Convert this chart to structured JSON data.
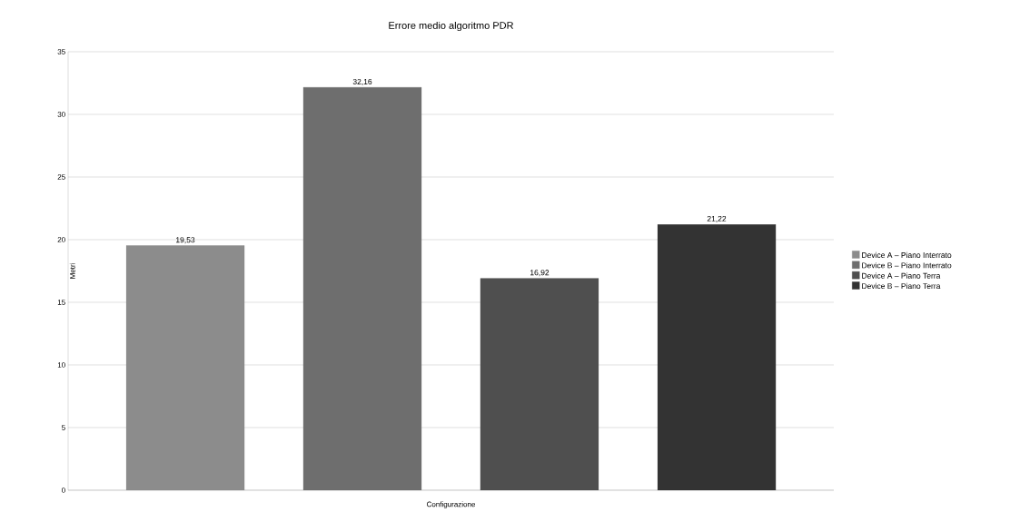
{
  "chart_data": {
    "type": "bar",
    "title": "Errore medio algoritmo PDR",
    "xlabel": "Configurazione",
    "ylabel": "Metri",
    "categories": [
      null
    ],
    "series": [
      {
        "name": "Device A – Piano Interrato",
        "color": "#8c8c8c",
        "values": [
          19.53
        ],
        "value_labels": [
          "19,53"
        ]
      },
      {
        "name": "Device B – Piano Interrato",
        "color": "#6e6e6e",
        "values": [
          32.16
        ],
        "value_labels": [
          "32,16"
        ]
      },
      {
        "name": "Device A – Piano Terra",
        "color": "#4f4f4f",
        "values": [
          16.92
        ],
        "value_labels": [
          "16,92"
        ]
      },
      {
        "name": "Device B – Piano Terra",
        "color": "#333333",
        "values": [
          21.22
        ],
        "value_labels": [
          "21,22"
        ]
      }
    ],
    "ylim": [
      0,
      35
    ],
    "yticks": [
      0,
      5,
      10,
      15,
      20,
      25,
      30,
      35
    ],
    "grid": "y",
    "legend": "right"
  }
}
